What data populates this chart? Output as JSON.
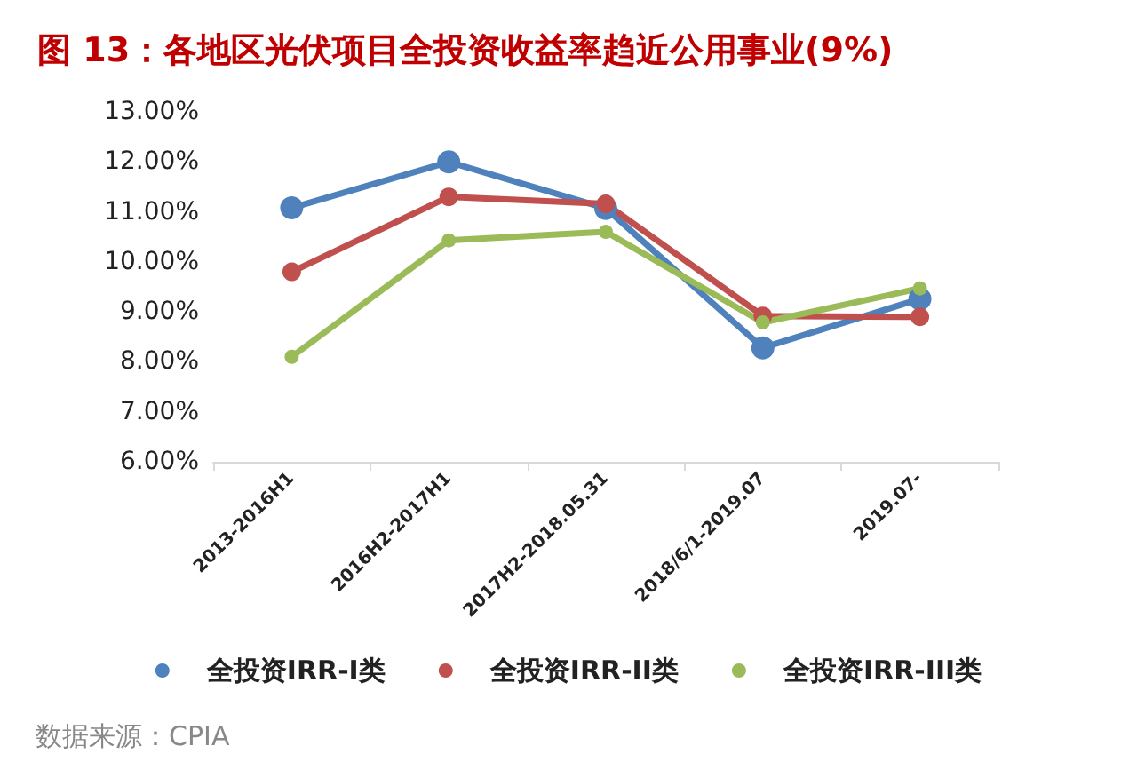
{
  "chart_data": {
    "type": "line",
    "title": "图 13：各地区光伏项目全投资收益率趋近公用事业(9%)",
    "categories": [
      "2013-2016H1",
      "2016H2-2017H1",
      "2017H2-2018.05.31",
      "2018/6/1-2019.07",
      "2019.07-"
    ],
    "series": [
      {
        "name": "全投资IRR-I类",
        "color": "#4f81bd",
        "values": [
          11.08,
          12.0,
          11.07,
          8.28,
          9.26
        ]
      },
      {
        "name": "全投资IRR-II类",
        "color": "#c0504d",
        "values": [
          9.8,
          11.3,
          11.16,
          8.92,
          8.9
        ]
      },
      {
        "name": "全投资IRR-III类",
        "color": "#9bbb59",
        "values": [
          8.1,
          10.43,
          10.6,
          8.79,
          9.47
        ]
      }
    ],
    "ylim": [
      6,
      13
    ],
    "yticks": [
      {
        "value": 6,
        "label": "6.00%"
      },
      {
        "value": 7,
        "label": "7.00%"
      },
      {
        "value": 8,
        "label": "8.00%"
      },
      {
        "value": 9,
        "label": "9.00%"
      },
      {
        "value": 10,
        "label": "10.00%"
      },
      {
        "value": 11,
        "label": "11.00%"
      },
      {
        "value": 12,
        "label": "12.00%"
      },
      {
        "value": 13,
        "label": "13.00%"
      }
    ],
    "annotations": [
      "数据来源：CPIA"
    ],
    "grid": false,
    "legend": "bottom",
    "marker": "circle",
    "line_style": "solid"
  }
}
